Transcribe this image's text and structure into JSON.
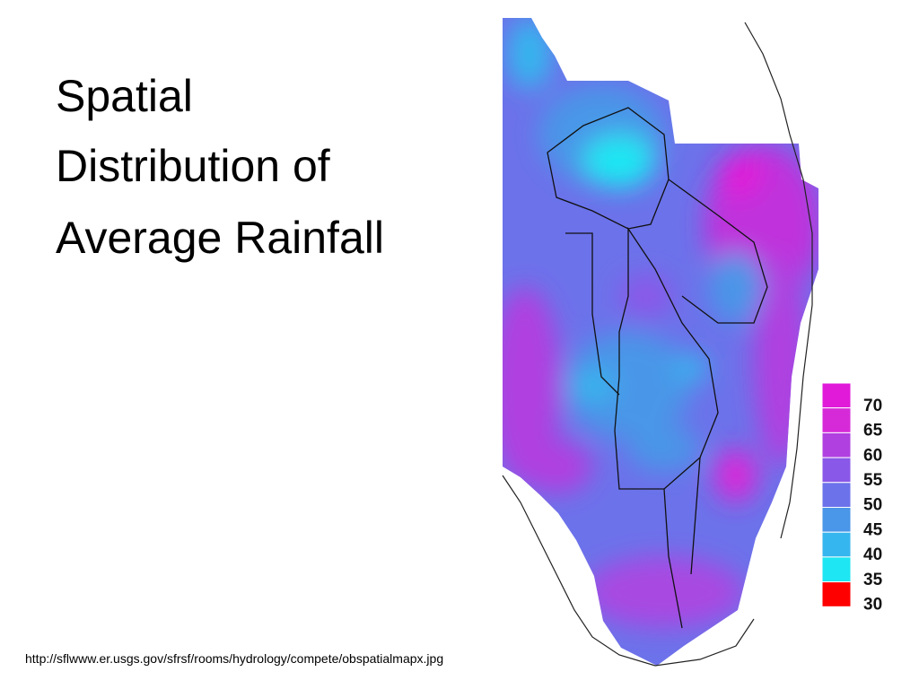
{
  "title": {
    "lines": [
      "Spatial",
      "Distribution of",
      "Average Rainfall"
    ]
  },
  "source": "http://sflwww.er.usgs.gov/sfrsf/rooms/hydrology/compete/obspatialmapx.jpg",
  "legend": [
    {
      "label": "70",
      "color": "#e01ad8"
    },
    {
      "label": "65",
      "color": "#d62ad8"
    },
    {
      "label": "60",
      "color": "#b040e0"
    },
    {
      "label": "55",
      "color": "#8a58e8"
    },
    {
      "label": "50",
      "color": "#6c72ea"
    },
    {
      "label": "45",
      "color": "#4a96e8"
    },
    {
      "label": "40",
      "color": "#36b6ee"
    },
    {
      "label": "35",
      "color": "#1ee6f2"
    },
    {
      "label": "30",
      "color": "#ff0000"
    }
  ]
}
